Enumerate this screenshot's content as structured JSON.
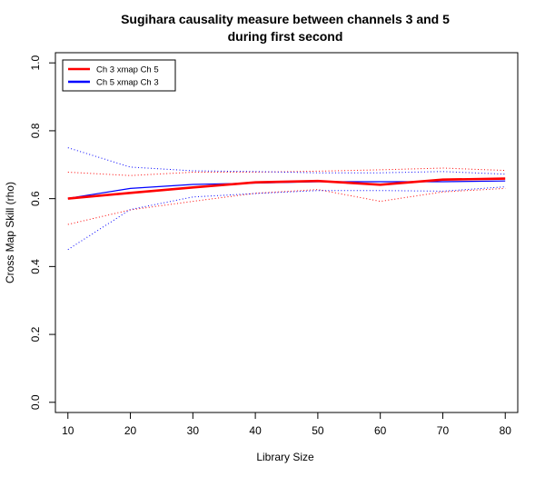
{
  "chart_data": {
    "type": "line",
    "title_lines": [
      "Sugihara causality measure between channels  3 and 5",
      "during first second"
    ],
    "xlabel": "Library Size",
    "ylabel": "Cross Map Skill (rho)",
    "xlim": [
      8,
      82
    ],
    "ylim": [
      -0.03,
      1.03
    ],
    "x_ticks": [
      10,
      20,
      30,
      40,
      50,
      60,
      70,
      80
    ],
    "y_ticks": [
      0.0,
      0.2,
      0.4,
      0.6,
      0.8,
      1.0
    ],
    "x_tick_labels": [
      "10",
      "20",
      "30",
      "40",
      "50",
      "60",
      "70",
      "80"
    ],
    "y_tick_labels": [
      "0.0",
      "0.2",
      "0.4",
      "0.6",
      "0.8",
      "1.0"
    ],
    "grid": false,
    "legend_position": "top-left",
    "x": [
      10,
      20,
      30,
      40,
      50,
      60,
      70,
      80
    ],
    "series": [
      {
        "name": "Ch 3 xmap Ch 5",
        "color": "#ff0000",
        "values": [
          0.6,
          0.617,
          0.633,
          0.648,
          0.652,
          0.641,
          0.656,
          0.659
        ],
        "upper": [
          0.678,
          0.668,
          0.678,
          0.678,
          0.681,
          0.685,
          0.69,
          0.683
        ],
        "lower": [
          0.524,
          0.567,
          0.592,
          0.616,
          0.627,
          0.592,
          0.62,
          0.63
        ]
      },
      {
        "name": "Ch 5  xmap Ch 3",
        "color": "#0000ff",
        "values": [
          0.601,
          0.63,
          0.642,
          0.646,
          0.65,
          0.65,
          0.65,
          0.652
        ],
        "upper": [
          0.75,
          0.693,
          0.682,
          0.68,
          0.676,
          0.676,
          0.68,
          0.672
        ],
        "lower": [
          0.45,
          0.568,
          0.605,
          0.615,
          0.624,
          0.624,
          0.622,
          0.635
        ]
      }
    ]
  }
}
